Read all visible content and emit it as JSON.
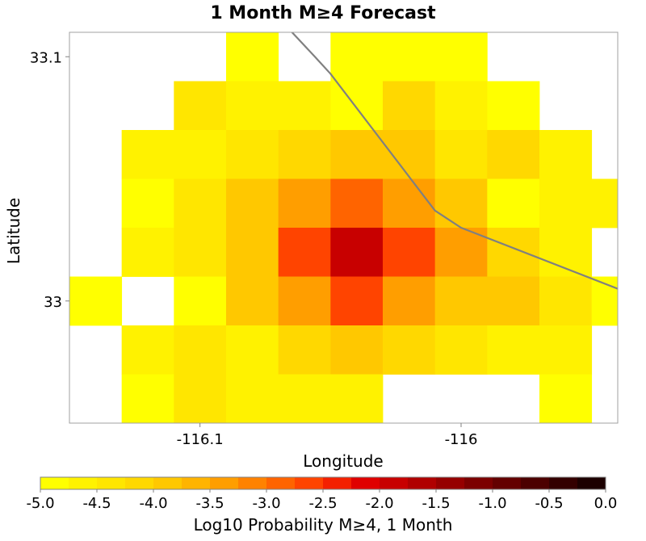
{
  "chart_data": {
    "type": "heatmap",
    "title": "1 Month M≥4 Forecast",
    "xlabel": "Longitude",
    "ylabel": "Latitude",
    "xlim": [
      -116.15,
      -115.94
    ],
    "ylim": [
      32.95,
      33.11
    ],
    "x_ticks": [
      {
        "value": -116.1,
        "label": "-116.1"
      },
      {
        "value": -116.0,
        "label": "-116"
      }
    ],
    "y_ticks": [
      {
        "value": 33.1,
        "label": "33.1"
      },
      {
        "value": 33.0,
        "label": "33"
      }
    ],
    "cell_size": 0.02,
    "x_centers": [
      -116.14,
      -116.12,
      -116.1,
      -116.08,
      -116.06,
      -116.04,
      -116.02,
      -116.0,
      -115.98,
      -115.96,
      -115.94
    ],
    "y_centers": [
      33.1,
      33.08,
      33.06,
      33.04,
      33.02,
      33.0,
      32.98,
      32.96,
      32.94
    ],
    "values": [
      [
        null,
        null,
        null,
        -5.0,
        null,
        -4.8,
        -4.8,
        -4.8,
        null,
        null,
        null
      ],
      [
        null,
        null,
        -4.4,
        -4.6,
        -4.6,
        -5.0,
        -4.2,
        -4.6,
        -4.8,
        null,
        null
      ],
      [
        null,
        -4.6,
        -4.6,
        -4.3,
        -4.1,
        -3.8,
        -4.0,
        -4.4,
        -4.2,
        -4.6,
        null
      ],
      [
        null,
        -5.0,
        -4.3,
        -3.8,
        -3.4,
        -3.0,
        -3.3,
        -3.9,
        -4.8,
        -4.6,
        -4.6
      ],
      [
        null,
        -4.6,
        -4.3,
        -3.8,
        -2.7,
        -1.9,
        -2.7,
        -3.4,
        -4.2,
        -4.6,
        null
      ],
      [
        -4.8,
        null,
        -4.8,
        -3.8,
        -3.3,
        -2.7,
        -3.3,
        -3.8,
        -4.0,
        -4.4,
        -4.8
      ],
      [
        null,
        -4.6,
        -4.4,
        -4.6,
        -4.1,
        -3.8,
        -4.2,
        -4.4,
        -4.6,
        -4.6,
        null
      ],
      [
        null,
        -4.8,
        -4.5,
        -4.6,
        -4.6,
        -4.6,
        null,
        null,
        null,
        -4.8,
        null
      ],
      [
        null,
        null,
        null,
        -4.8,
        null,
        -4.8,
        null,
        null,
        null,
        null,
        null
      ]
    ],
    "fault_trace": [
      [
        -116.07,
        33.116
      ],
      [
        -116.056,
        33.1
      ],
      [
        -116.05,
        33.093
      ],
      [
        -116.03,
        33.065
      ],
      [
        -116.01,
        33.037
      ],
      [
        -116.0,
        33.03
      ],
      [
        -115.94,
        33.005
      ],
      [
        -115.89,
        32.987
      ]
    ],
    "colorbar": {
      "label": "Log10 Probability M≥4, 1 Month",
      "min": -5.0,
      "max": 0.0,
      "ticks": [
        {
          "value": -5.0,
          "label": "-5.0"
        },
        {
          "value": -4.5,
          "label": "-4.5"
        },
        {
          "value": -4.0,
          "label": "-4.0"
        },
        {
          "value": -3.5,
          "label": "-3.5"
        },
        {
          "value": -3.0,
          "label": "-3.0"
        },
        {
          "value": -2.5,
          "label": "-2.5"
        },
        {
          "value": -2.0,
          "label": "-2.0"
        },
        {
          "value": -1.5,
          "label": "-1.5"
        },
        {
          "value": -1.0,
          "label": "-1.0"
        },
        {
          "value": -0.5,
          "label": "-0.5"
        },
        {
          "value": 0.0,
          "label": "0.0"
        }
      ],
      "colors": [
        "#ffff00",
        "#fff200",
        "#ffe600",
        "#ffd800",
        "#ffc800",
        "#ffb400",
        "#ff9e00",
        "#ff8200",
        "#ff6400",
        "#ff4400",
        "#f42000",
        "#e00000",
        "#c80000",
        "#b00000",
        "#960000",
        "#7c0000",
        "#640000",
        "#4c0000",
        "#340000",
        "#1c0000"
      ]
    },
    "grid": false,
    "fault_color": "#808080"
  }
}
